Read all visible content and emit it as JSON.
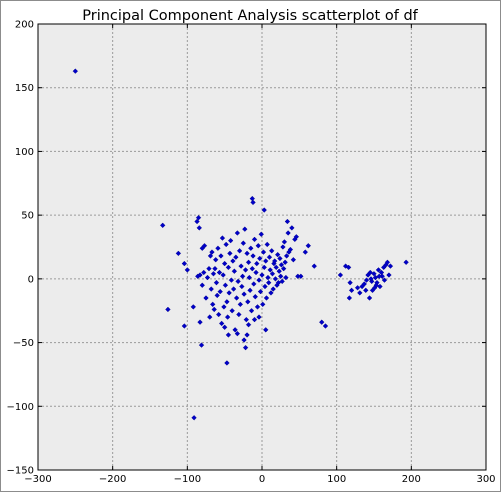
{
  "chart_data": {
    "type": "scatter",
    "title": "Principal Component Analysis scatterplot of df",
    "xlabel": "",
    "ylabel": "",
    "xlim": [
      -300,
      300
    ],
    "ylim": [
      -150,
      200
    ],
    "xticks": [
      -300,
      -200,
      -100,
      0,
      100,
      200,
      300
    ],
    "yticks": [
      -150,
      -100,
      -50,
      0,
      50,
      100,
      150,
      200
    ],
    "grid": true,
    "legend": "none",
    "background_color": "#ececec",
    "marker_color": "#0000c8",
    "marker": "diamond",
    "points": [
      [
        -250,
        163
      ],
      [
        -133,
        42
      ],
      [
        -112,
        20
      ],
      [
        -126,
        -24
      ],
      [
        -104,
        12
      ],
      [
        -100,
        7
      ],
      [
        -104,
        -37
      ],
      [
        -92,
        -22
      ],
      [
        -91,
        -109
      ],
      [
        -87,
        45
      ],
      [
        -85,
        48
      ],
      [
        -84,
        40
      ],
      [
        -80,
        24
      ],
      [
        -77,
        26
      ],
      [
        -83,
        -34
      ],
      [
        -81,
        -52
      ],
      [
        -86,
        2
      ],
      [
        -83,
        3
      ],
      [
        -80,
        -5
      ],
      [
        -78,
        5
      ],
      [
        -75,
        -15
      ],
      [
        -73,
        1
      ],
      [
        -71,
        8
      ],
      [
        -70,
        -30
      ],
      [
        -69,
        18
      ],
      [
        -68,
        -8
      ],
      [
        -67,
        21
      ],
      [
        -66,
        -20
      ],
      [
        -65,
        4
      ],
      [
        -64,
        -24
      ],
      [
        -63,
        8
      ],
      [
        -62,
        15
      ],
      [
        -61,
        -3
      ],
      [
        -60,
        -13
      ],
      [
        -59,
        24
      ],
      [
        -58,
        -28
      ],
      [
        -57,
        5
      ],
      [
        -56,
        -10
      ],
      [
        -55,
        18
      ],
      [
        -54,
        -35
      ],
      [
        -53,
        32
      ],
      [
        -52,
        3
      ],
      [
        -51,
        -22
      ],
      [
        -50,
        12
      ],
      [
        -49,
        -5
      ],
      [
        -48,
        27
      ],
      [
        -47,
        -18
      ],
      [
        -46,
        -30
      ],
      [
        -45,
        9
      ],
      [
        -44,
        -11
      ],
      [
        -43,
        20
      ],
      [
        -42,
        30
      ],
      [
        -41,
        -1
      ],
      [
        -40,
        -25
      ],
      [
        -39,
        14
      ],
      [
        -38,
        -8
      ],
      [
        -37,
        6
      ],
      [
        -36,
        -40
      ],
      [
        -35,
        17
      ],
      [
        -34,
        -15
      ],
      [
        -33,
        36
      ],
      [
        -32,
        -2
      ],
      [
        -31,
        -28
      ],
      [
        -30,
        22
      ],
      [
        -29,
        -20
      ],
      [
        -28,
        10
      ],
      [
        -27,
        -6
      ],
      [
        -26,
        2
      ],
      [
        -25,
        28
      ],
      [
        -24,
        -12
      ],
      [
        -23,
        39
      ],
      [
        -22,
        7
      ],
      [
        -21,
        -32
      ],
      [
        -20,
        20
      ],
      [
        -19,
        -18
      ],
      [
        -18,
        13
      ],
      [
        -17,
        1
      ],
      [
        -16,
        -9
      ],
      [
        -15,
        24
      ],
      [
        -14,
        -25
      ],
      [
        -13,
        8
      ],
      [
        -12,
        18
      ],
      [
        -11,
        -4
      ],
      [
        -10,
        31
      ],
      [
        -9,
        -14
      ],
      [
        -8,
        5
      ],
      [
        -7,
        12
      ],
      [
        -6,
        -22
      ],
      [
        -5,
        26
      ],
      [
        -4,
        -1
      ],
      [
        -3,
        16
      ],
      [
        -2,
        -10
      ],
      [
        -1,
        35
      ],
      [
        0,
        3
      ],
      [
        1,
        -20
      ],
      [
        2,
        21
      ],
      [
        3,
        9
      ],
      [
        4,
        -6
      ],
      [
        5,
        14
      ],
      [
        6,
        -15
      ],
      [
        7,
        27
      ],
      [
        8,
        1
      ],
      [
        9,
        -3
      ],
      [
        10,
        17
      ],
      [
        11,
        7
      ],
      [
        12,
        -11
      ],
      [
        13,
        22
      ],
      [
        14,
        4
      ],
      [
        15,
        -8
      ],
      [
        16,
        12
      ],
      [
        17,
        14
      ],
      [
        18,
        0
      ],
      [
        19,
        9
      ],
      [
        20,
        -5
      ],
      [
        21,
        19
      ],
      [
        22,
        -3
      ],
      [
        23,
        6
      ],
      [
        24,
        16
      ],
      [
        25,
        2
      ],
      [
        26,
        11
      ],
      [
        27,
        -2
      ],
      [
        28,
        25
      ],
      [
        29,
        8
      ],
      [
        30,
        29
      ],
      [
        31,
        13
      ],
      [
        32,
        1
      ],
      [
        33,
        18
      ],
      [
        34,
        45
      ],
      [
        35,
        36
      ],
      [
        36,
        21
      ],
      [
        38,
        23
      ],
      [
        40,
        40
      ],
      [
        42,
        15
      ],
      [
        44,
        31
      ],
      [
        46,
        33
      ],
      [
        48,
        2
      ],
      [
        52,
        2
      ],
      [
        58,
        21
      ],
      [
        62,
        26
      ],
      [
        -13,
        63
      ],
      [
        -12,
        60
      ],
      [
        3,
        54
      ],
      [
        -18,
        -36
      ],
      [
        -20,
        -44
      ],
      [
        -24,
        -48
      ],
      [
        -22,
        -54
      ],
      [
        -33,
        -43
      ],
      [
        -47,
        -66
      ],
      [
        -50,
        -38
      ],
      [
        -45,
        -44
      ],
      [
        -10,
        -32
      ],
      [
        5,
        -40
      ],
      [
        -4,
        -30
      ],
      [
        70,
        10
      ],
      [
        80,
        -34
      ],
      [
        85,
        -37
      ],
      [
        105,
        3
      ],
      [
        112,
        10
      ],
      [
        116,
        9
      ],
      [
        117,
        -15
      ],
      [
        118,
        -3
      ],
      [
        120,
        -9
      ],
      [
        128,
        -7
      ],
      [
        131,
        -11
      ],
      [
        134,
        -6
      ],
      [
        137,
        -4
      ],
      [
        139,
        -9
      ],
      [
        142,
        3
      ],
      [
        144,
        -15
      ],
      [
        145,
        5
      ],
      [
        147,
        -2
      ],
      [
        148,
        -9
      ],
      [
        150,
        4
      ],
      [
        151,
        -7
      ],
      [
        152,
        1
      ],
      [
        154,
        -3
      ],
      [
        156,
        7
      ],
      [
        158,
        -6
      ],
      [
        160,
        5
      ],
      [
        161,
        2
      ],
      [
        163,
        9
      ],
      [
        164,
        -1
      ],
      [
        166,
        11
      ],
      [
        168,
        13
      ],
      [
        170,
        3
      ],
      [
        172,
        10
      ],
      [
        193,
        13
      ],
      [
        140,
        -1
      ],
      [
        146,
        0
      ],
      [
        153,
        -5
      ],
      [
        157,
        2
      ]
    ]
  }
}
